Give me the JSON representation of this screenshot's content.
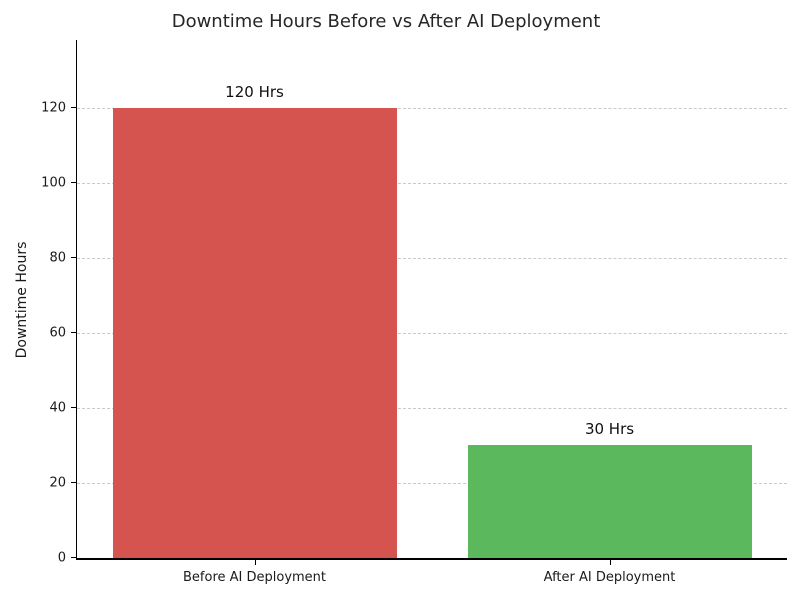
{
  "chart_data": {
    "type": "bar",
    "title": "Downtime Hours Before vs After AI Deployment",
    "xlabel": "",
    "ylabel": "Downtime Hours",
    "categories": [
      "Before AI Deployment",
      "After AI Deployment"
    ],
    "values": [
      120,
      30
    ],
    "bar_labels": [
      "120 Hrs",
      "30 Hrs"
    ],
    "bar_colors": [
      "#d5544f",
      "#5bb85c"
    ],
    "yticks": [
      0,
      20,
      40,
      60,
      80,
      100,
      120
    ],
    "ylim": [
      0,
      138
    ],
    "grid": "horizontal-dashed",
    "legend": "none",
    "colors": {
      "title_text": "#262626",
      "tick_text": "#1a1a1a",
      "gridline": "#c9c9c9",
      "spine": "#000000",
      "background": "#ffffff"
    }
  }
}
